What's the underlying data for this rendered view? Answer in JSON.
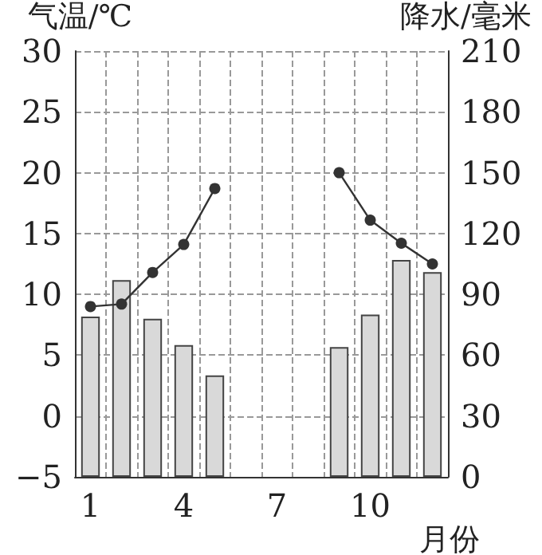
{
  "chart_data": {
    "type": "bar",
    "xlabel": "月份",
    "ylabel": "气温/℃",
    "y2label": "降水/毫米",
    "categories": [
      "1",
      null,
      null,
      "4",
      null,
      null,
      "7",
      null,
      null,
      "10",
      null,
      null
    ],
    "series": [
      {
        "name": null,
        "axis": "y2",
        "color": "#d9d9d9",
        "values": [
          79,
          97,
          78,
          65,
          50,
          null,
          null,
          null,
          64,
          80,
          107,
          101
        ]
      },
      {
        "name": null,
        "type": "line",
        "axis": "y",
        "color": "#333333",
        "values": [
          9,
          9.2,
          11.8,
          14.1,
          18.7,
          null,
          null,
          null,
          20,
          16.1,
          14.2,
          12.5
        ]
      }
    ],
    "ylim": [
      -5,
      30
    ],
    "yticks": [
      -5,
      0,
      5,
      10,
      15,
      20,
      25,
      30
    ],
    "y2lim": [
      0,
      210
    ],
    "y2ticks": [
      0,
      30,
      60,
      90,
      120,
      150,
      180,
      210
    ],
    "grid": true,
    "marker": "circle",
    "line_style": "solid"
  }
}
